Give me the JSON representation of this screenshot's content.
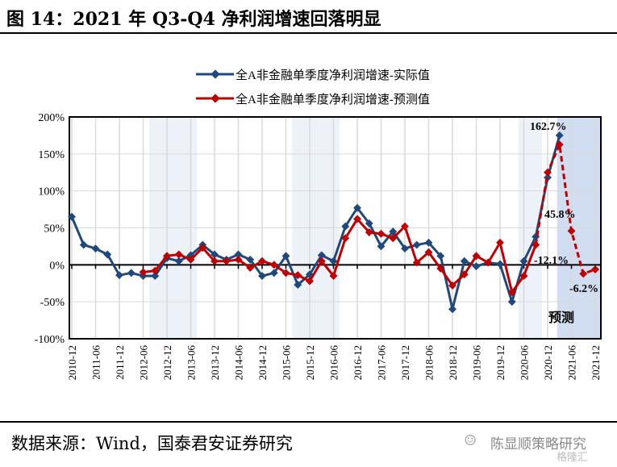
{
  "title": "图 14：2021 年 Q3-Q4 净利润增速回落明显",
  "footer": {
    "source": "数据来源：Wind，国泰君安证券研究",
    "watermark": "陈显顺策略研究",
    "watermark2": "格隆汇"
  },
  "chart_data": {
    "type": "line",
    "xlabel": "",
    "ylabel": "",
    "ylim": [
      -100,
      200
    ],
    "yticks": [
      "-100%",
      "-50%",
      "0%",
      "50%",
      "100%",
      "150%",
      "200%"
    ],
    "grid": true,
    "legend_placement": "top",
    "x": [
      "2010-12",
      "2011-03",
      "2011-06",
      "2011-09",
      "2011-12",
      "2012-03",
      "2012-06",
      "2012-09",
      "2012-12",
      "2013-03",
      "2013-06",
      "2013-09",
      "2013-12",
      "2014-03",
      "2014-06",
      "2014-09",
      "2014-12",
      "2015-03",
      "2015-06",
      "2015-09",
      "2015-12",
      "2016-03",
      "2016-06",
      "2016-09",
      "2016-12",
      "2017-03",
      "2017-06",
      "2017-09",
      "2017-12",
      "2018-03",
      "2018-06",
      "2018-09",
      "2018-12",
      "2019-03",
      "2019-06",
      "2019-09",
      "2019-12",
      "2020-03",
      "2020-06",
      "2020-09",
      "2020-12",
      "2021-03",
      "2021-06",
      "2021-09",
      "2021-12"
    ],
    "xtick_labels": [
      "2010-12",
      "2011-06",
      "2011-12",
      "2012-06",
      "2012-12",
      "2013-06",
      "2013-12",
      "2014-06",
      "2014-12",
      "2015-06",
      "2015-12",
      "2016-06",
      "2016-12",
      "2017-06",
      "2017-12",
      "2018-06",
      "2018-12",
      "2019-06",
      "2019-12",
      "2020-06",
      "2020-12",
      "2021-06",
      "2021-12"
    ],
    "series": [
      {
        "name": "全A非金融单季度净利润增速-实际值",
        "color": "#1F497D",
        "values": [
          65,
          27,
          22,
          14,
          -14,
          -11,
          -15,
          -15,
          9,
          5,
          13,
          27,
          14,
          7,
          14,
          7,
          -15,
          -11,
          12,
          -27,
          -13,
          13,
          5,
          52,
          77,
          56,
          25,
          45,
          22,
          27,
          30,
          12,
          -60,
          5,
          -2,
          3,
          1,
          -50,
          5,
          38,
          118,
          175,
          null,
          null,
          null
        ]
      },
      {
        "name": "全A非金融单季度净利润增速-预测值",
        "color": "#C00000",
        "values": [
          null,
          null,
          null,
          null,
          null,
          null,
          -10,
          -8,
          12,
          14,
          7,
          23,
          5,
          5,
          7,
          -4,
          5,
          0,
          -11,
          -14,
          -22,
          5,
          -15,
          36,
          62,
          44,
          42,
          36,
          52,
          3,
          17,
          -5,
          -28,
          -13,
          12,
          3,
          30,
          -37,
          -15,
          27,
          125,
          162.7,
          45.8,
          -12.1,
          -6.2
        ]
      }
    ],
    "shaded_periods": [
      [
        "2012-09",
        "2013-09"
      ],
      [
        "2015-09",
        "2016-09"
      ],
      [
        "2020-06",
        "2020-12"
      ]
    ],
    "forecast_period": [
      "2021-03",
      "2021-12"
    ],
    "annotations": [
      {
        "x": "2021-03",
        "text": "162.7%"
      },
      {
        "x": "2021-06",
        "text": "45.8%"
      },
      {
        "x": "2021-09",
        "text": "-12.1%"
      },
      {
        "x": "2021-12",
        "text": "-6.2%"
      },
      {
        "text": "预测"
      }
    ]
  }
}
